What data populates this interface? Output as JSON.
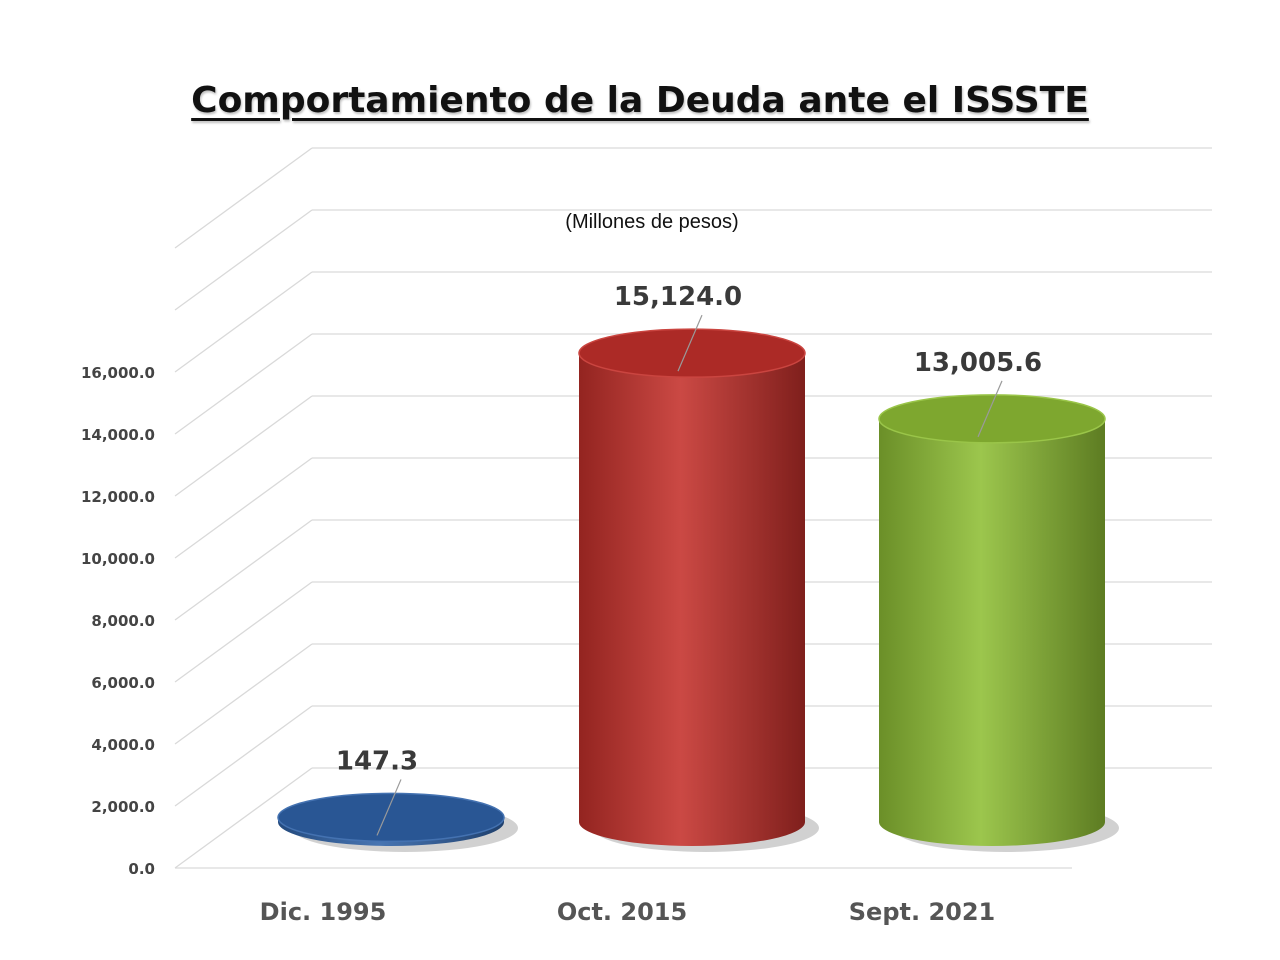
{
  "chart_data": {
    "type": "bar",
    "title": "Comportamiento de la Deuda ante el ISSSTE",
    "subtitle": "(Millones de pesos)",
    "categories": [
      "Dic. 1995",
      "Oct. 2015",
      "Sept. 2021"
    ],
    "values": [
      147.3,
      15124.0,
      13005.6
    ],
    "value_labels": [
      "147.3",
      "15,124.0",
      "13,005.6"
    ],
    "colors": [
      "#2f62a8",
      "#c4302b",
      "#8fbe35"
    ],
    "ylim": [
      0,
      16000
    ],
    "yticks": [
      {
        "value": 0,
        "label": "0.0"
      },
      {
        "value": 2000,
        "label": "2,000.0"
      },
      {
        "value": 4000,
        "label": "4,000.0"
      },
      {
        "value": 6000,
        "label": "6,000.0"
      },
      {
        "value": 8000,
        "label": "8,000.0"
      },
      {
        "value": 10000,
        "label": "10,000.0"
      },
      {
        "value": 12000,
        "label": "12,000.0"
      },
      {
        "value": 14000,
        "label": "14,000.0"
      },
      {
        "value": 16000,
        "label": "16,000.0"
      }
    ],
    "grid": true,
    "style": "3d-cylinder"
  }
}
